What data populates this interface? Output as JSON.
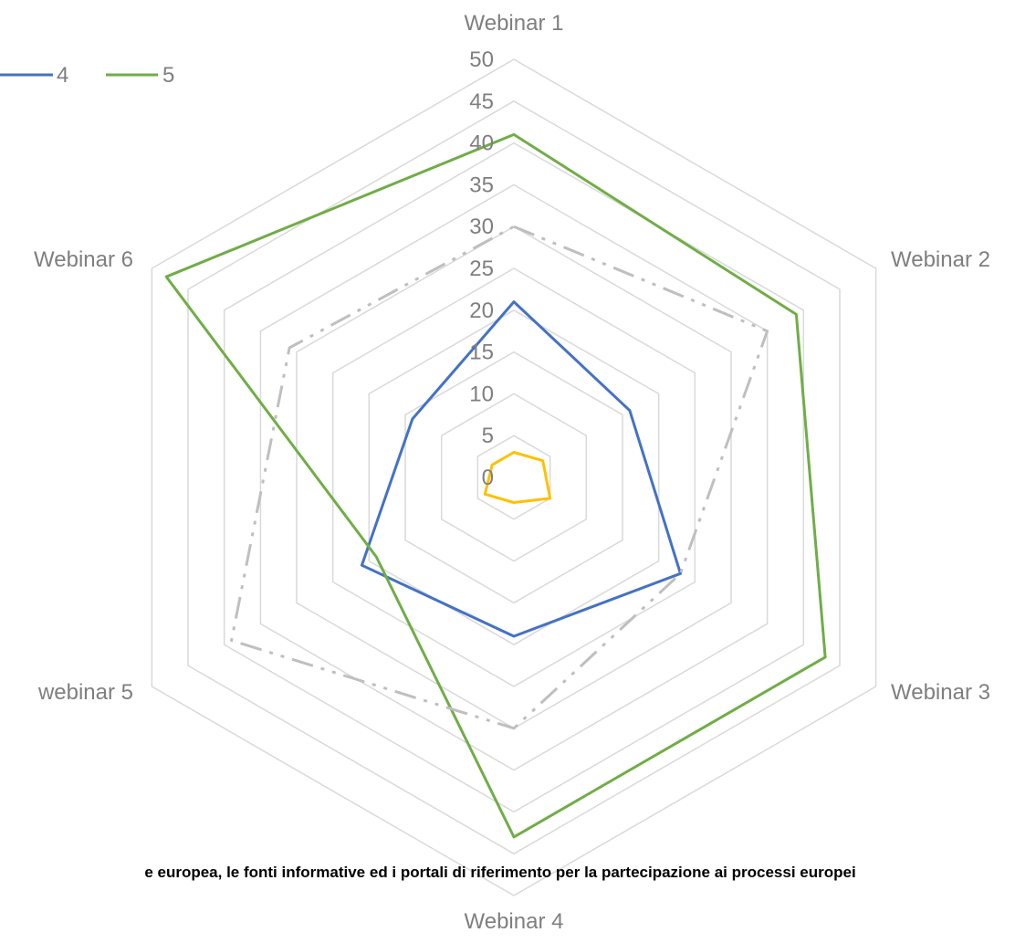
{
  "chart_data": {
    "type": "radar",
    "axes": [
      "Webinar 1",
      "Webinar 2",
      "Webinar 3",
      "Webinar 4",
      "webinar 5",
      "Webinar 6"
    ],
    "r_range": [
      0,
      50
    ],
    "ticks": [
      0,
      5,
      10,
      15,
      20,
      25,
      30,
      35,
      40,
      45,
      50
    ],
    "grid": true,
    "legend": {
      "placement": "top-left",
      "entries": [
        "4",
        "5"
      ]
    },
    "series": [
      {
        "name": "",
        "color": "#ffc000",
        "style": "solid",
        "values": [
          3,
          4,
          5,
          3,
          4,
          3
        ]
      },
      {
        "name": "4",
        "color": "#4472c4",
        "style": "solid",
        "values": [
          21,
          16,
          23,
          19,
          21,
          14
        ]
      },
      {
        "name": "5",
        "color": "#70ad47",
        "style": "solid",
        "values": [
          41,
          39,
          43,
          43,
          19,
          48
        ]
      },
      {
        "name": "",
        "color": "#bfbfbf",
        "style": "dashdot",
        "values": [
          30,
          35,
          23,
          30,
          39,
          31
        ]
      }
    ],
    "caption": "e europea, le fonti informative ed i portali di riferimento per la partecipazione ai processi europei"
  }
}
